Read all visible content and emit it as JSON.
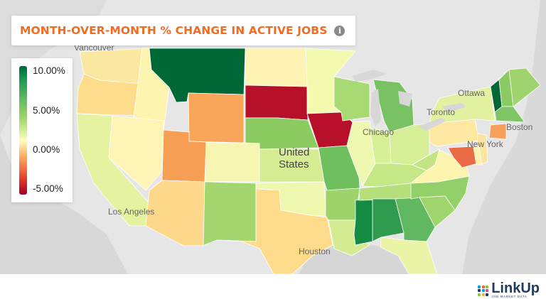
{
  "title": "MONTH-OVER-MONTH % CHANGE IN ACTIVE JOBS",
  "info_icon": "info-icon",
  "legend": {
    "labels": [
      "10.00%",
      "5.00%",
      "0.00%",
      "-5.00%"
    ],
    "colors": [
      "#006837",
      "#66bd63",
      "#ffffbf",
      "#a50026"
    ]
  },
  "map_labels": {
    "country": [
      "United",
      "States"
    ],
    "cities": [
      "Vancouver",
      "Ottawa",
      "Toronto",
      "Boston",
      "Chicago",
      "New York",
      "Los Angeles",
      "Houston"
    ]
  },
  "logo": {
    "name": "LinkUp",
    "tagline": "JOB MARKET DATA",
    "dot_colors": [
      "#00a3e0",
      "#f26b21",
      "#8dc63f",
      "#1f3a5f",
      "#00a3e0",
      "#e84a8a",
      "#8dc63f",
      "#f9b233",
      "#1f3a5f"
    ]
  },
  "state_colors": {
    "WA": "#fbe8a0",
    "OR": "#fddc8c",
    "CA": "#e5f2a0",
    "ID": "#fdf4b0",
    "NV": "#fff3b5",
    "MT": "#006837",
    "WY": "#f9a65a",
    "UT": "#f79e55",
    "AZ": "#fdd88a",
    "CO": "#f6f5b2",
    "NM": "#a3d66e",
    "ND": "#fff3b3",
    "SD": "#b7112a",
    "NE": "#8ccb62",
    "KS": "#d5ec92",
    "OK": "#eef7ad",
    "TX": "#fddb8b",
    "MN": "#f4f9b0",
    "IA": "#b8102a",
    "MO": "#6fbf5f",
    "AR": "#9dd36a",
    "LA": "#d3ec92",
    "WI": "#a7da72",
    "IL": "#eef8b0",
    "MS": "#148a43",
    "MI": "#78c264",
    "IN": "#d7ef96",
    "OH": "#d6ee96",
    "KY": "#c6e786",
    "TN": "#b4df7a",
    "AL": "#2f9b4e",
    "GA": "#60b960",
    "FL": "#e9f4a6",
    "SC": "#9fd56d",
    "NC": "#94d06a",
    "VA": "#fbf3ae",
    "WV": "#c3e484",
    "PA": "#fee7a0",
    "NY": "#e2f1a0",
    "VT": "#006837",
    "NH": "#8ccb64",
    "ME": "#9ed36d",
    "MA": "#7fc566",
    "CT": "#f8a05a",
    "NJ": "#fbe3a0",
    "MD": "#ea6a43",
    "DE": "#fff1b0"
  }
}
